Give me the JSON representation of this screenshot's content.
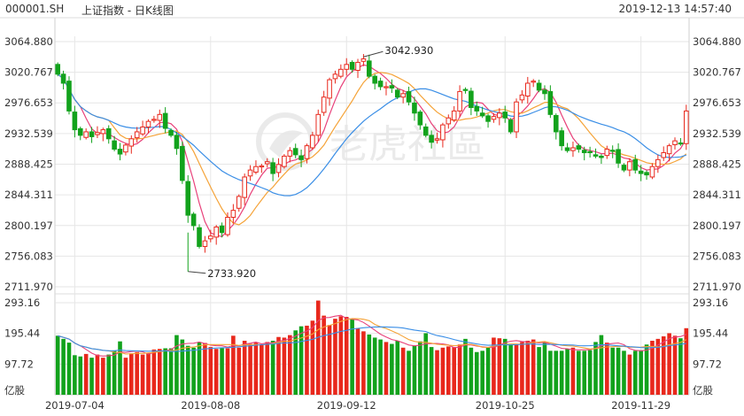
{
  "header": {
    "symbol": "000001.SH",
    "title": "上证指数 - 日K线图",
    "datetime": "2019-12-13 14:57:40"
  },
  "watermark": {
    "text": "老虎社區",
    "logo_icon": "tiger-logo-icon"
  },
  "colors": {
    "up": "#e8281c",
    "down": "#12a21c",
    "ma5": "#e8417a",
    "ma10": "#f5a338",
    "ma20": "#3a8ee6",
    "grid": "#e6e6e6",
    "axis_text": "#333333"
  },
  "chart_data": [
    {
      "type": "candlestick",
      "title": "上证指数 - 日K线图",
      "ylim": [
        2711.97,
        3064.88
      ],
      "y_ticks": [
        "3064.880",
        "3020.767",
        "2976.653",
        "2932.539",
        "2888.425",
        "2844.311",
        "2800.197",
        "2756.083",
        "2711.970"
      ],
      "x_tick_labels": [
        "2019-07-04",
        "2019-08-08",
        "2019-09-12",
        "2019-10-25",
        "2019-11-29"
      ],
      "annotations": {
        "high": "3042.930",
        "low": "2733.920"
      },
      "moving_averages": [
        "MA5",
        "MA10",
        "MA20"
      ],
      "grid": true
    },
    {
      "type": "bar",
      "y_ticks": [
        "293.16",
        "195.44",
        "97.72"
      ],
      "unit": "亿股",
      "grid": true
    }
  ]
}
